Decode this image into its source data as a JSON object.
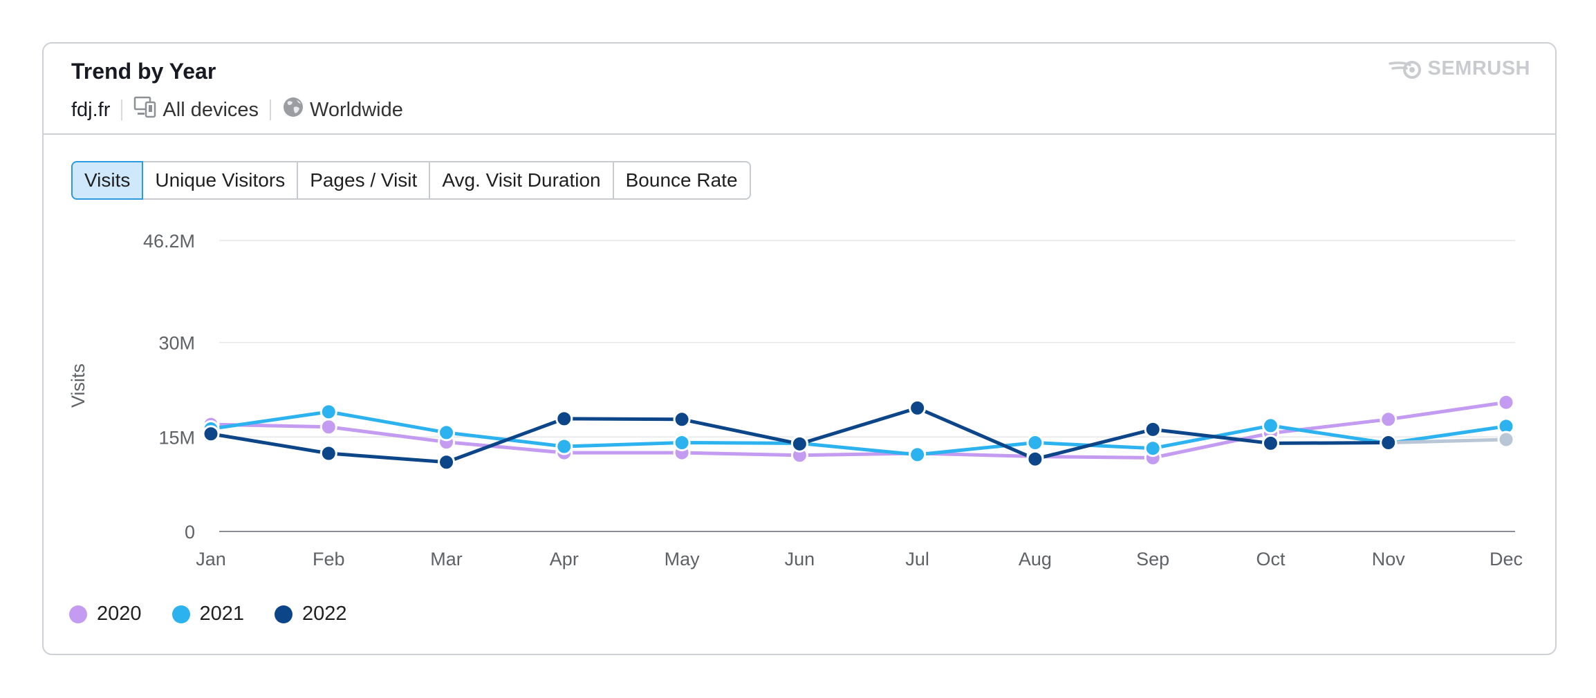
{
  "header": {
    "title": "Trend by Year",
    "brand": "SEMRUSH",
    "domain": "fdj.fr",
    "devices_label": "All devices",
    "region_label": "Worldwide"
  },
  "tabs": [
    {
      "label": "Visits",
      "active": true
    },
    {
      "label": "Unique Visitors",
      "active": false
    },
    {
      "label": "Pages / Visit",
      "active": false
    },
    {
      "label": "Avg. Visit Duration",
      "active": false
    },
    {
      "label": "Bounce Rate",
      "active": false
    }
  ],
  "icons": {
    "devices": "devices-icon",
    "globe": "globe-icon",
    "brand": "semrush-logo-icon"
  },
  "colors": {
    "s2020": "#c39bf0",
    "s2021": "#2db2f0",
    "s2022": "#0c4689",
    "projected": "#b8c6d6",
    "grid": "#e4e6e9",
    "axis": "#8a8e94"
  },
  "chart_data": {
    "type": "line",
    "ylabel": "Visits",
    "xlabel": "",
    "categories": [
      "Jan",
      "Feb",
      "Mar",
      "Apr",
      "May",
      "Jun",
      "Jul",
      "Aug",
      "Sep",
      "Oct",
      "Nov",
      "Dec"
    ],
    "y_ticks": [
      {
        "value": 0,
        "label": "0"
      },
      {
        "value": 15000000,
        "label": "15M"
      },
      {
        "value": 30000000,
        "label": "30M"
      },
      {
        "value": 46200000,
        "label": "46.2M"
      }
    ],
    "ylim": [
      0,
      46200000
    ],
    "grid": true,
    "legend_position": "bottom-left",
    "series": [
      {
        "name": "2020",
        "color": "#c39bf0",
        "values": [
          17000000,
          16600000,
          14200000,
          12500000,
          12500000,
          12100000,
          12400000,
          11900000,
          11700000,
          15600000,
          17800000,
          20500000
        ]
      },
      {
        "name": "2021",
        "color": "#2db2f0",
        "values": [
          16300000,
          19000000,
          15700000,
          13500000,
          14100000,
          14000000,
          12200000,
          14100000,
          13200000,
          16800000,
          14000000,
          16700000
        ]
      },
      {
        "name": "2022",
        "color": "#0c4689",
        "values": [
          15500000,
          12400000,
          11000000,
          17900000,
          17800000,
          13900000,
          19600000,
          11500000,
          16200000,
          14000000,
          14100000,
          null
        ],
        "projected": {
          "values": [
            null,
            null,
            null,
            null,
            null,
            null,
            null,
            null,
            null,
            null,
            14100000,
            14600000
          ],
          "color": "#b8c6d6"
        }
      }
    ]
  }
}
